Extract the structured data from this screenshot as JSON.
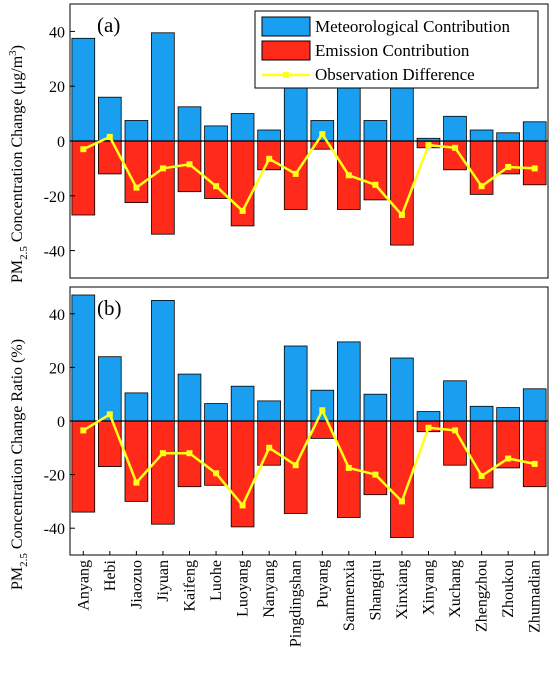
{
  "chart_data": {
    "type": "bar",
    "categories": [
      "Anyang",
      "Hebi",
      "Jiaozuo",
      "Jiyuan",
      "Kaifeng",
      "Luohe",
      "Luoyang",
      "Nanyang",
      "Pingdingshan",
      "Puyang",
      "Sanmenxia",
      "Shangqiu",
      "Xinxiang",
      "Xinyang",
      "Xuchang",
      "Zhengzhou",
      "Zhoukou",
      "Zhumadian"
    ],
    "colors": {
      "meteorological": "#1a9ff0",
      "emission": "#ff2a1a",
      "observation": "#ffff1a"
    },
    "legend": {
      "position": "top-right",
      "entries": [
        "Meteorological Contribution",
        "Emission Contribution",
        "Observation Difference"
      ]
    },
    "ylabel_top": {
      "prefix": "PM",
      "sub": "2.5",
      "main": " Concentration Change (μg/m",
      "sup": "3",
      "end": ")"
    },
    "ylabel_bottom": {
      "prefix": "PM",
      "sub": "2.5",
      "main": " Concentration Change Ratio (%)"
    },
    "panels": [
      {
        "label": "(a)",
        "ylim": [
          -50,
          50
        ],
        "yticks": [
          -40,
          -20,
          0,
          20,
          40
        ],
        "series": [
          {
            "name": "Meteorological Contribution",
            "values": [
              37.5,
              16,
              7.5,
              39.5,
              12.5,
              5.5,
              10,
              4,
              20,
              7.5,
              20,
              7.5,
              20.5,
              1,
              9,
              4,
              3,
              7
            ]
          },
          {
            "name": "Emission Contribution",
            "values": [
              -27,
              -12,
              -22.5,
              -34,
              -18.5,
              -21,
              -31,
              -10.5,
              -25,
              -3,
              -25,
              -21.5,
              -38,
              -2.5,
              -10.5,
              -19.5,
              -12,
              -16
            ]
          },
          {
            "name": "Observation Difference",
            "values": [
              -3,
              1.5,
              -17,
              -10,
              -8.5,
              -16.5,
              -25.5,
              -6.5,
              -12,
              2.5,
              -12.5,
              -16,
              -27,
              -1.5,
              -2.5,
              -16.5,
              -9.5,
              -10
            ]
          }
        ]
      },
      {
        "label": "(b)",
        "ylim": [
          -50,
          50
        ],
        "yticks": [
          -40,
          -20,
          0,
          20,
          40
        ],
        "series": [
          {
            "name": "Meteorological Contribution",
            "values": [
              47,
              24,
              10.5,
              45,
              17.5,
              6.5,
              13,
              7.5,
              28,
              11.5,
              29.5,
              10,
              23.5,
              3.5,
              15,
              5.5,
              5,
              12
            ]
          },
          {
            "name": "Emission Contribution",
            "values": [
              -34,
              -17,
              -30,
              -38.5,
              -24.5,
              -24,
              -39.5,
              -16.5,
              -34.5,
              -6.5,
              -36,
              -27.5,
              -43.5,
              -4,
              -16.5,
              -25,
              -17.5,
              -24.5
            ]
          },
          {
            "name": "Observation Difference",
            "values": [
              -3.5,
              2.5,
              -23,
              -12,
              -12,
              -19.5,
              -31.5,
              -10,
              -16.5,
              4,
              -17.5,
              -20,
              -30,
              -2.5,
              -3.5,
              -20.5,
              -14,
              -16
            ]
          }
        ]
      }
    ]
  }
}
